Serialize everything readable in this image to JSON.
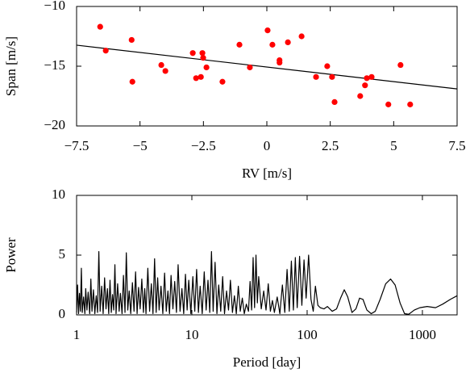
{
  "chart_data": [
    {
      "type": "scatter",
      "xlabel": "RV [m/s]",
      "ylabel": "Span [m/s]",
      "color": "#ff0000",
      "x": [
        -6.57,
        -6.35,
        -5.33,
        -5.3,
        -4.16,
        -4.0,
        -2.92,
        -2.79,
        -2.6,
        -2.54,
        -2.51,
        -2.38,
        -1.75,
        -1.08,
        -0.67,
        0.03,
        0.22,
        0.5,
        0.5,
        0.83,
        1.37,
        1.94,
        2.38,
        2.57,
        2.67,
        3.68,
        3.87,
        3.94,
        4.13,
        4.79,
        5.27,
        5.65
      ],
      "values": [
        -11.7,
        -13.7,
        -12.8,
        -16.3,
        -14.9,
        -15.4,
        -13.9,
        -16.0,
        -15.9,
        -13.9,
        -14.3,
        -15.1,
        -16.3,
        -13.2,
        -15.1,
        -12.0,
        -13.2,
        -14.5,
        -14.7,
        -13.0,
        -12.5,
        -15.9,
        -15.0,
        -15.9,
        -18.0,
        -17.5,
        -16.6,
        -16.0,
        -15.9,
        -18.2,
        -14.9,
        -18.2
      ],
      "fit": {
        "x": [
          -7.5,
          7.5
        ],
        "values": [
          -13.24,
          -16.9
        ],
        "color": "#000000"
      },
      "xlim": [
        -7.5,
        7.5
      ],
      "ylim": [
        -20,
        -10
      ],
      "xticks": [
        {
          "value": -7.5,
          "label": "−7.5"
        },
        {
          "value": -5,
          "label": "−5"
        },
        {
          "value": -2.5,
          "label": "−2.5"
        },
        0,
        2.5,
        5,
        7.5
      ],
      "yticks": [
        {
          "value": -10,
          "label": "−10"
        },
        {
          "value": -15,
          "label": "−15"
        },
        {
          "value": -20,
          "label": "−20"
        }
      ]
    },
    {
      "type": "line",
      "xlabel": "Period [day]",
      "ylabel": "Power",
      "color": "#000000",
      "xscale": "log",
      "x": [
        1.0,
        1.02,
        1.04,
        1.06,
        1.08,
        1.1,
        1.12,
        1.15,
        1.18,
        1.2,
        1.23,
        1.26,
        1.3,
        1.33,
        1.36,
        1.4,
        1.44,
        1.48,
        1.52,
        1.56,
        1.6,
        1.65,
        1.7,
        1.75,
        1.8,
        1.85,
        1.9,
        1.95,
        2.0,
        2.05,
        2.1,
        2.15,
        2.2,
        2.27,
        2.34,
        2.4,
        2.48,
        2.55,
        2.63,
        2.7,
        2.78,
        2.86,
        2.95,
        3.05,
        3.15,
        3.25,
        3.35,
        3.45,
        3.56,
        3.68,
        3.8,
        3.9,
        4.0,
        4.15,
        4.3,
        4.45,
        4.6,
        4.75,
        4.9,
        5.05,
        5.2,
        5.4,
        5.6,
        5.8,
        6.0,
        6.2,
        6.4,
        6.6,
        6.85,
        7.1,
        7.35,
        7.6,
        7.9,
        8.2,
        8.5,
        8.8,
        9.1,
        9.4,
        9.8,
        10.2,
        10.6,
        11.0,
        11.4,
        11.8,
        12.3,
        12.8,
        13.3,
        13.8,
        14.3,
        14.8,
        15.3,
        15.9,
        16.5,
        17.1,
        17.8,
        18.5,
        19.2,
        20.0,
        20.8,
        21.6,
        22.5,
        23.4,
        24.3,
        25.3,
        26.3,
        27.4,
        28.5,
        29.7,
        31,
        32,
        33,
        34,
        35,
        36,
        37,
        38,
        40,
        42,
        44,
        46,
        48,
        50,
        52,
        55,
        58,
        61,
        64,
        67,
        70,
        73,
        76,
        79,
        82,
        86,
        90,
        94,
        98,
        103,
        108,
        113,
        118,
        124,
        130,
        140,
        150,
        165,
        180,
        195,
        210,
        225,
        245,
        265,
        285,
        305,
        330,
        360,
        390,
        430,
        480,
        530,
        580,
        640,
        700,
        760,
        850,
        950,
        1100,
        1300,
        1500,
        1750,
        2000
      ],
      "values": [
        0.2,
        2.5,
        0.1,
        1.8,
        0.3,
        3.9,
        0.2,
        1.5,
        0.1,
        2.2,
        0.4,
        1.9,
        0.1,
        3.0,
        0.3,
        2.1,
        0.1,
        1.6,
        0.2,
        5.3,
        0.3,
        2.4,
        0.1,
        3.1,
        0.5,
        2.2,
        0.1,
        2.9,
        0.2,
        1.7,
        0.4,
        4.2,
        0.1,
        2.6,
        0.3,
        1.8,
        0.1,
        3.3,
        0.2,
        5.2,
        0.4,
        2.0,
        0.1,
        2.7,
        0.3,
        3.6,
        0.1,
        2.3,
        0.5,
        3.0,
        0.2,
        2.2,
        0.1,
        3.9,
        0.3,
        2.6,
        0.1,
        4.7,
        0.2,
        3.1,
        0.4,
        2.4,
        0.1,
        3.5,
        0.3,
        2.0,
        0.1,
        3.3,
        0.5,
        2.8,
        0.2,
        4.2,
        0.3,
        2.2,
        0.1,
        3.4,
        0.4,
        2.9,
        0.1,
        3.2,
        0.3,
        3.8,
        0.2,
        2.4,
        0.1,
        3.6,
        0.4,
        2.9,
        0.2,
        5.3,
        0.3,
        4.4,
        0.1,
        2.5,
        0.3,
        3.2,
        0.1,
        2.0,
        0.4,
        2.9,
        0.2,
        1.6,
        0.1,
        2.4,
        0.3,
        1.4,
        0.1,
        0.9,
        0.3,
        2.8,
        0.4,
        4.8,
        0.6,
        5.0,
        1.0,
        3.2,
        0.5,
        2.0,
        0.4,
        2.6,
        0.3,
        1.2,
        0.2,
        1.5,
        0.1,
        2.5,
        0.2,
        3.8,
        0.3,
        4.5,
        0.4,
        4.8,
        0.6,
        4.9,
        0.8,
        4.6,
        1.4,
        5.0,
        1.3,
        0.3,
        2.4,
        0.8,
        0.6,
        0.5,
        0.7,
        0.3,
        0.5,
        1.4,
        2.1,
        1.5,
        0.2,
        0.5,
        1.4,
        1.3,
        0.4,
        0.1,
        0.3,
        1.3,
        2.6,
        3.0,
        2.5,
        1.0,
        0.1,
        0.05,
        0.4,
        0.6,
        0.7,
        0.6,
        0.9,
        1.3,
        1.6
      ],
      "xlim": [
        1,
        2000
      ],
      "ylim": [
        0,
        10
      ],
      "xticks": [
        1,
        10,
        100,
        1000
      ],
      "yticks": [
        0,
        5,
        10
      ]
    }
  ]
}
